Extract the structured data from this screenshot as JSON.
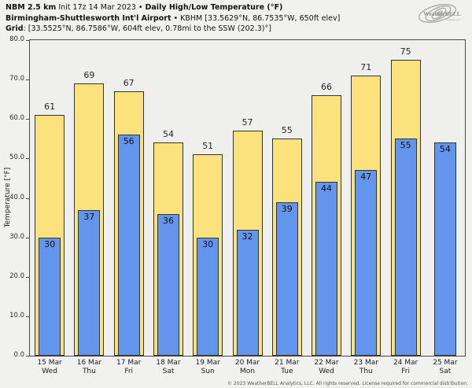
{
  "header": {
    "line1": {
      "bold1": "NBM 2.5 km",
      "regular1": " Init 17z 14 Mar 2023 • ",
      "bold2": "Daily High/Low Temperature (°F)"
    },
    "line2": {
      "bold": "Birmingham-Shuttlesworth Int'l Airport",
      "regular": " • KBHM [33.5629°N, 86.7535°W, 650ft elev]"
    },
    "line3": {
      "bold": "Grid",
      "regular": ": [33.5525°N, 86.7586°W, 604ft elev, 0.78mi to the SSW (202.3)°]"
    }
  },
  "logo": {
    "brand": "WeatherBELL",
    "sub": "Analytics LLC"
  },
  "chart_data": {
    "type": "bar",
    "title": "Daily High/Low Temperature (°F)",
    "xlabel": "",
    "ylabel": "Temperature [°F]",
    "ylim": [
      0,
      80
    ],
    "yticks": [
      "0.0",
      "10.0",
      "20.0",
      "30.0",
      "40.0",
      "50.0",
      "60.0",
      "70.0",
      "80.0"
    ],
    "grid": false,
    "legend": "none",
    "categories": [
      [
        "15 Mar",
        "Wed"
      ],
      [
        "16 Mar",
        "Thu"
      ],
      [
        "17 Mar",
        "Fri"
      ],
      [
        "18 Mar",
        "Sat"
      ],
      [
        "19 Mar",
        "Sun"
      ],
      [
        "20 Mar",
        "Mon"
      ],
      [
        "21 Mar",
        "Tue"
      ],
      [
        "22 Mar",
        "Wed"
      ],
      [
        "23 Mar",
        "Thu"
      ],
      [
        "24 Mar",
        "Fri"
      ],
      [
        "25 Mar",
        "Sat"
      ]
    ],
    "series": [
      {
        "name": "Daily High",
        "color": "#FCE27D",
        "values": [
          61,
          69,
          67,
          54,
          51,
          57,
          55,
          66,
          71,
          75,
          null
        ]
      },
      {
        "name": "Daily Low",
        "color": "#6495ED",
        "values": [
          30,
          37,
          56,
          36,
          30,
          32,
          39,
          44,
          47,
          55,
          54
        ]
      }
    ]
  },
  "colors": {
    "high_bar": "#FCE27D",
    "low_bar": "#6495ED",
    "bar_border": "#333333",
    "plot_background": "#efefee",
    "figure_background": "#f1f1f0"
  },
  "footer": {
    "copyright": "© 2023 WeatherBELL Analytics, LLC. All rights reserved. License required for commercial distribution."
  }
}
